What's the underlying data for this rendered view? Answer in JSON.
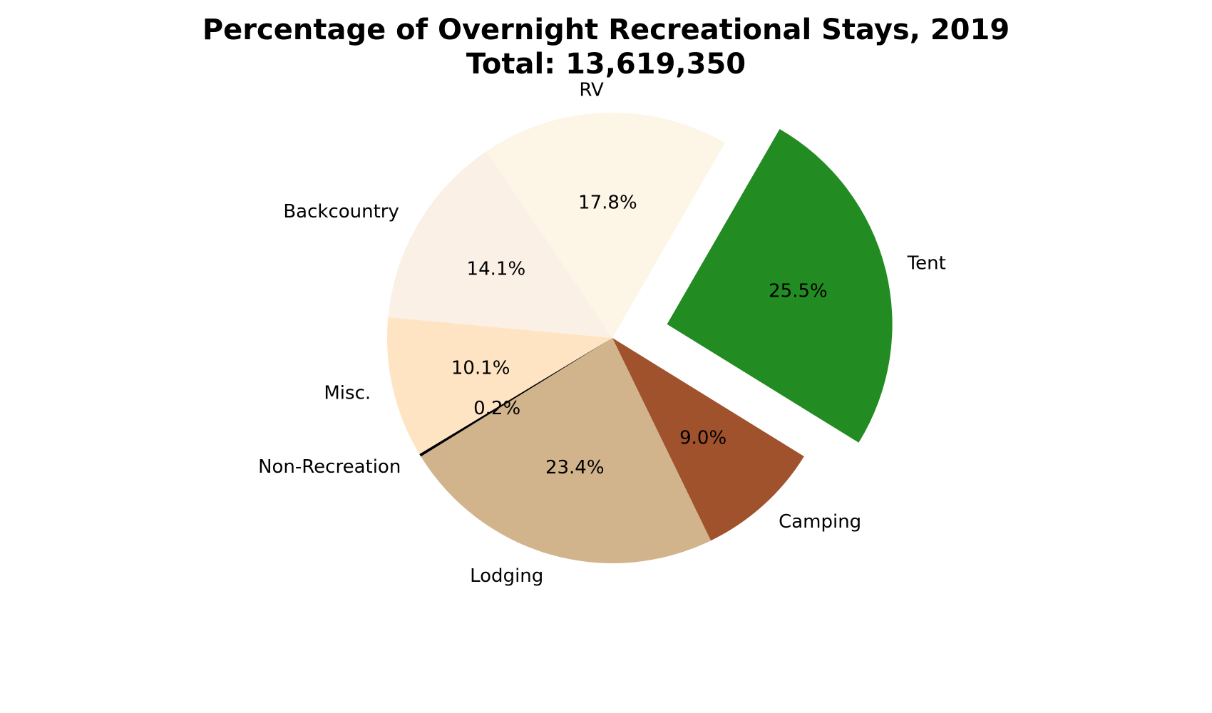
{
  "chart_data": {
    "type": "pie",
    "title": "Percentage of Overnight Recreational Stays, 2019",
    "subtitle": "Total: 13,619,350",
    "start_angle_deg": 60,
    "direction": "counterclockwise",
    "slices": [
      {
        "label": "RV",
        "value": 17.8,
        "pct_label": "17.8%",
        "color": "#FDF5E6",
        "exploded": false
      },
      {
        "label": "Backcountry",
        "value": 14.1,
        "pct_label": "14.1%",
        "color": "#FAF0E6",
        "exploded": false
      },
      {
        "label": "Misc.",
        "value": 10.1,
        "pct_label": "10.1%",
        "color": "#FFE4C4",
        "exploded": false
      },
      {
        "label": "Non-Recreation",
        "value": 0.2,
        "pct_label": "0.2%",
        "color": "#000000",
        "exploded": false
      },
      {
        "label": "Lodging",
        "value": 23.4,
        "pct_label": "23.4%",
        "color": "#D2B48C",
        "exploded": false
      },
      {
        "label": "Camping",
        "value": 9.0,
        "pct_label": "9.0%",
        "color": "#A0522D",
        "exploded": false
      },
      {
        "label": "Tent",
        "value": 25.5,
        "pct_label": "25.5%",
        "color": "#228B22",
        "exploded": true
      }
    ]
  }
}
